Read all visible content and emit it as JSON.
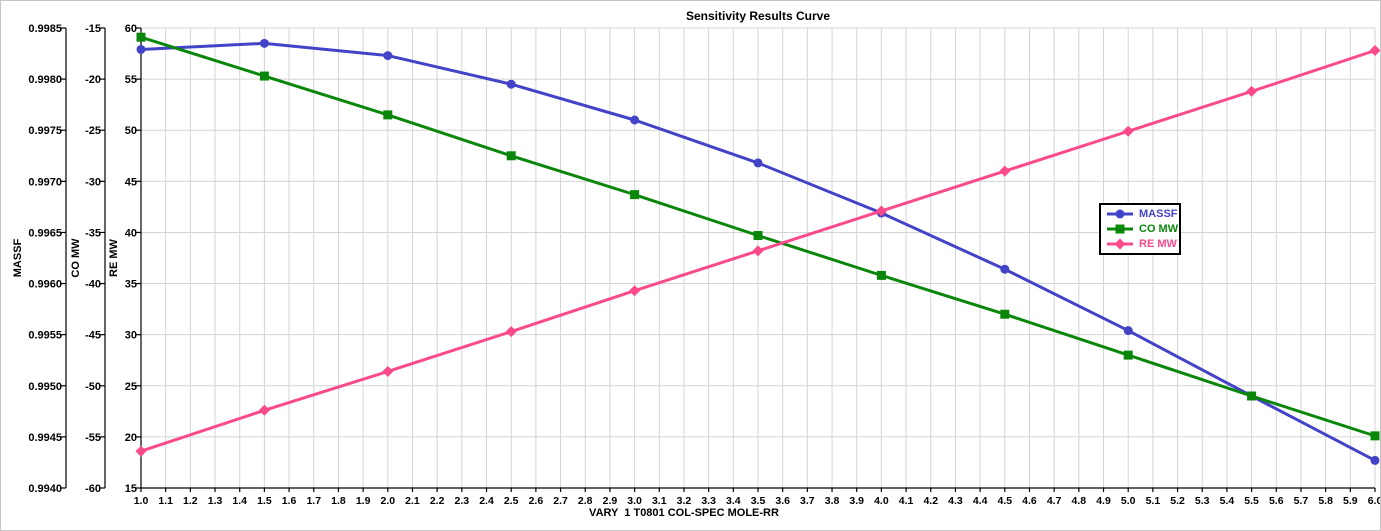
{
  "window": {
    "background": "#ffffff",
    "border_color": "#c6c6c6"
  },
  "colors": {
    "grid": "#d4d4d4",
    "axis": "#000000",
    "title_text": "#000000",
    "massf_series": "#4343c8",
    "co_mw_series": "#0a870a",
    "re_mw_series": "#fa4a8c"
  },
  "chart_data": {
    "type": "line",
    "title": "Sensitivity Results Curve",
    "grid": true,
    "legend_position": "right-middle",
    "x_axis": {
      "title": "VARY  1 T0801 COL-SPEC MOLE-RR",
      "min": 1.0,
      "max": 6.0,
      "tick_step": 0.1,
      "tick_decimals": 1
    },
    "y_axes": [
      {
        "label": "MASSF",
        "min": 0.994,
        "max": 0.9985,
        "tick_step": 0.0005,
        "tick_decimals": 4
      },
      {
        "label": "CO MW",
        "min": -60,
        "max": -15,
        "tick_step": 5,
        "tick_decimals": 0
      },
      {
        "label": "RE MW",
        "min": 15,
        "max": 60,
        "tick_step": 5,
        "tick_decimals": 0
      }
    ],
    "x": [
      1.0,
      1.5,
      2.0,
      2.5,
      3.0,
      3.5,
      4.0,
      4.5,
      5.0,
      5.5,
      6.0
    ],
    "series": [
      {
        "name": "MASSF",
        "axis": 0,
        "color": "#4343c8",
        "marker": "circle",
        "values": [
          0.99829,
          0.99835,
          0.99823,
          0.99795,
          0.9976,
          0.99718,
          0.99669,
          0.99614,
          0.99554,
          0.9949,
          0.99427
        ]
      },
      {
        "name": "CO MW",
        "axis": 1,
        "color": "#0a870a",
        "marker": "square",
        "values": [
          -15.9,
          -19.7,
          -23.5,
          -27.5,
          -31.3,
          -35.3,
          -39.2,
          -43.0,
          -47.0,
          -51.0,
          -54.9
        ]
      },
      {
        "name": "RE MW",
        "axis": 2,
        "color": "#fa4a8c",
        "marker": "diamond",
        "values": [
          18.6,
          22.6,
          26.4,
          30.3,
          34.3,
          38.2,
          42.1,
          46.0,
          49.9,
          53.8,
          57.8
        ]
      }
    ],
    "legend_items": [
      "MASSF",
      "CO MW",
      "RE MW"
    ]
  }
}
